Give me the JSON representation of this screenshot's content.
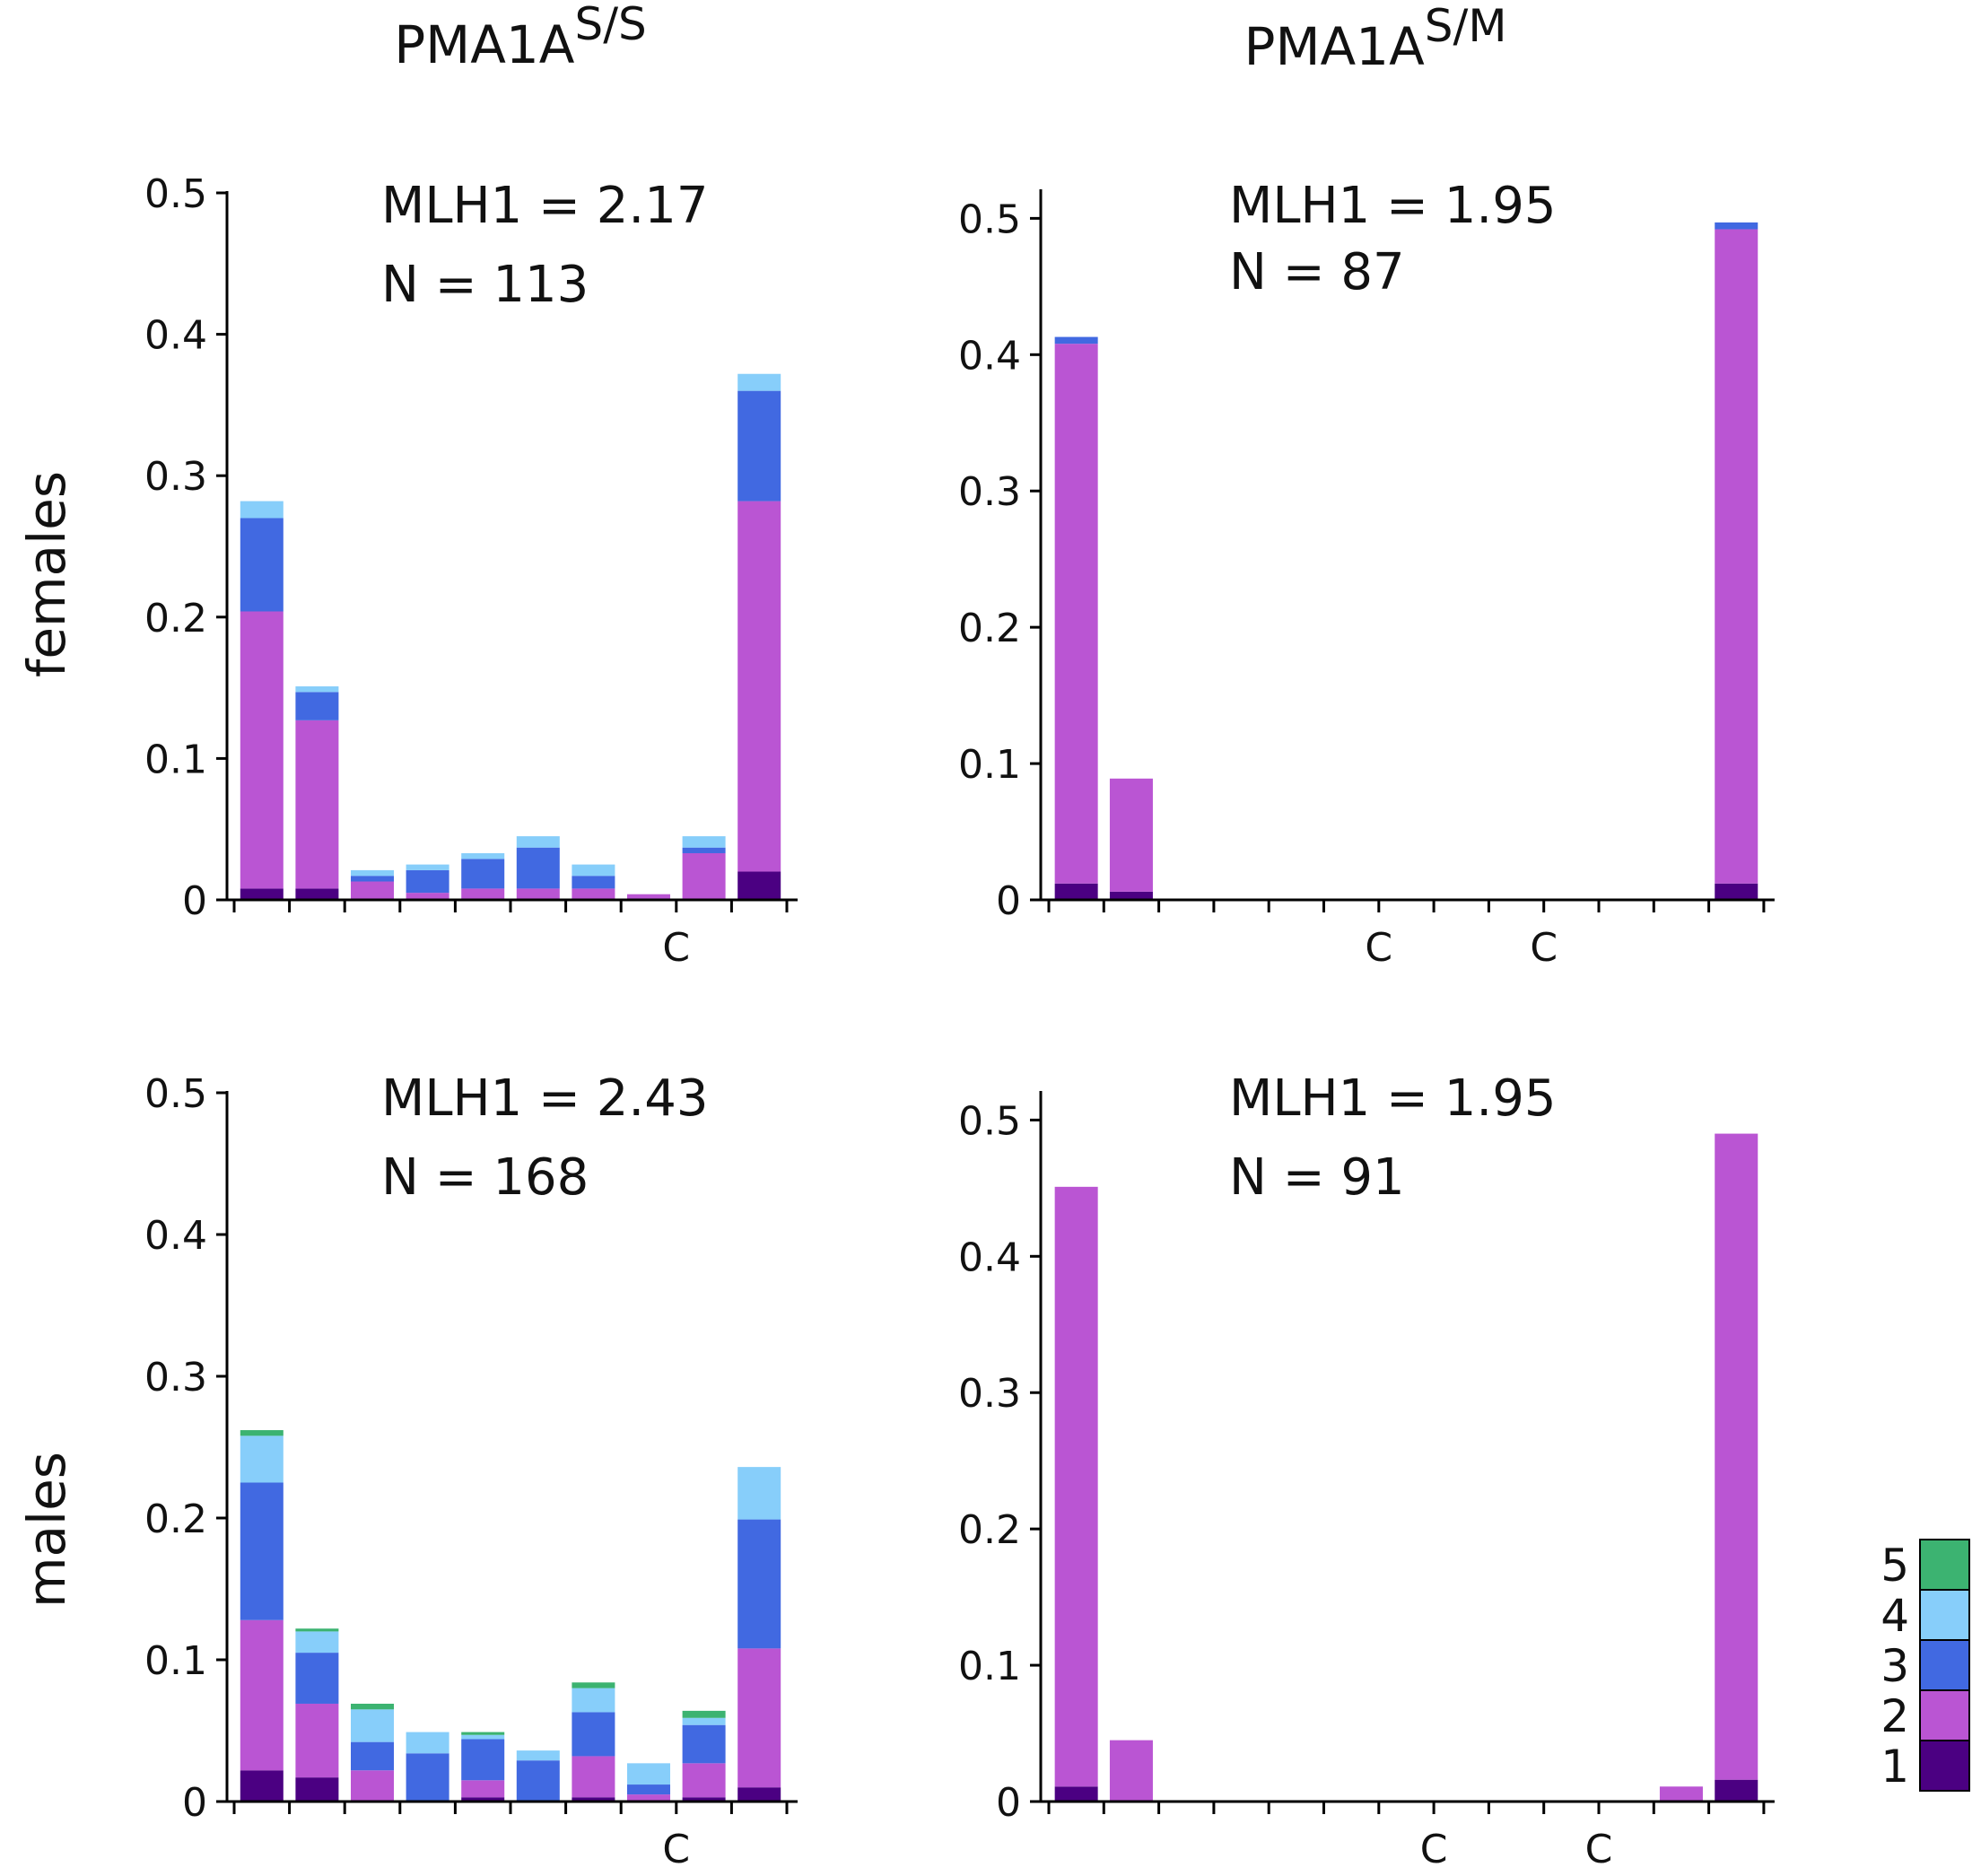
{
  "figure": {
    "col_titles": [
      {
        "base": "PMA1A",
        "sup": "S/S"
      },
      {
        "base": "PMA1A",
        "sup": "S/M"
      }
    ],
    "row_labels": [
      "females",
      "males"
    ]
  },
  "legend": {
    "entries": [
      {
        "label": "5",
        "color": "#3cb371"
      },
      {
        "label": "4",
        "color": "#87cefa"
      },
      {
        "label": "3",
        "color": "#4169e1"
      },
      {
        "label": "2",
        "color": "#ba55d3"
      },
      {
        "label": "1",
        "color": "#4b0082"
      }
    ]
  },
  "chart_data": [
    {
      "type": "bar",
      "stacked": true,
      "panel": "females, PMA1A S/S",
      "annotations": [
        "MLH1 = 2.17",
        "N = 113"
      ],
      "ylim": [
        0,
        0.5
      ],
      "yticks": [
        0,
        0.1,
        0.2,
        0.3,
        0.4,
        0.5
      ],
      "ytick_labels": [
        "0",
        "0.1",
        "0.2",
        "0.3",
        "0.4",
        "0.5"
      ],
      "n_bins": 10,
      "xtick_labels": [
        {
          "bin": 8,
          "label": "C"
        }
      ],
      "series": [
        {
          "name": "1",
          "values": [
            0.008,
            0.008,
            0,
            0,
            0,
            0,
            0,
            0,
            0,
            0.02
          ]
        },
        {
          "name": "2",
          "values": [
            0.196,
            0.119,
            0.013,
            0.005,
            0.008,
            0.008,
            0.008,
            0.004,
            0.033,
            0.262
          ]
        },
        {
          "name": "3",
          "values": [
            0.066,
            0.02,
            0.004,
            0.016,
            0.021,
            0.029,
            0.009,
            0,
            0.004,
            0.078
          ]
        },
        {
          "name": "4",
          "values": [
            0.012,
            0.004,
            0.004,
            0.004,
            0.004,
            0.008,
            0.008,
            0,
            0.008,
            0.012
          ]
        },
        {
          "name": "5",
          "values": [
            0,
            0,
            0,
            0,
            0,
            0,
            0,
            0,
            0,
            0
          ]
        }
      ]
    },
    {
      "type": "bar",
      "stacked": true,
      "panel": "females, PMA1A S/M",
      "annotations": [
        "MLH1 = 1.95",
        "N = 87"
      ],
      "ylim": [
        0,
        0.52
      ],
      "yticks": [
        0,
        0.1,
        0.2,
        0.3,
        0.4,
        0.5
      ],
      "ytick_labels": [
        "0",
        "0.1",
        "0.2",
        "0.3",
        "0.4",
        "0.5"
      ],
      "n_bins": 13,
      "xtick_labels": [
        {
          "bin": 6,
          "label": "C"
        },
        {
          "bin": 9,
          "label": "C"
        }
      ],
      "series": [
        {
          "name": "1",
          "values": [
            0.012,
            0.006,
            0,
            0,
            0,
            0,
            0,
            0,
            0,
            0,
            0,
            0,
            0.012
          ]
        },
        {
          "name": "2",
          "values": [
            0.396,
            0.083,
            0,
            0,
            0,
            0,
            0,
            0,
            0,
            0,
            0,
            0,
            0.48
          ]
        },
        {
          "name": "3",
          "values": [
            0.005,
            0,
            0,
            0,
            0,
            0,
            0,
            0,
            0,
            0,
            0,
            0,
            0.005
          ]
        },
        {
          "name": "4",
          "values": [
            0,
            0,
            0,
            0,
            0,
            0,
            0,
            0,
            0,
            0,
            0,
            0,
            0
          ]
        },
        {
          "name": "5",
          "values": [
            0,
            0,
            0,
            0,
            0,
            0,
            0,
            0,
            0,
            0,
            0,
            0,
            0
          ]
        }
      ]
    },
    {
      "type": "bar",
      "stacked": true,
      "panel": "males, PMA1A S/S",
      "annotations": [
        "MLH1 = 2.43",
        "N = 168"
      ],
      "ylim": [
        0,
        0.5
      ],
      "yticks": [
        0,
        0.1,
        0.2,
        0.3,
        0.4,
        0.5
      ],
      "ytick_labels": [
        "0",
        "0.1",
        "0.2",
        "0.3",
        "0.4",
        "0.5"
      ],
      "n_bins": 10,
      "xtick_labels": [
        {
          "bin": 8,
          "label": "C"
        }
      ],
      "series": [
        {
          "name": "1",
          "values": [
            0.022,
            0.017,
            0,
            0,
            0.003,
            0,
            0.003,
            0,
            0.003,
            0.01
          ]
        },
        {
          "name": "2",
          "values": [
            0.106,
            0.052,
            0.022,
            0,
            0.012,
            0,
            0.029,
            0.005,
            0.024,
            0.098
          ]
        },
        {
          "name": "3",
          "values": [
            0.097,
            0.036,
            0.02,
            0.034,
            0.029,
            0.029,
            0.031,
            0.007,
            0.027,
            0.091
          ]
        },
        {
          "name": "4",
          "values": [
            0.033,
            0.015,
            0.023,
            0.015,
            0.003,
            0.007,
            0.017,
            0.015,
            0.005,
            0.037
          ]
        },
        {
          "name": "5",
          "values": [
            0.004,
            0.002,
            0.004,
            0,
            0.002,
            0,
            0.004,
            0,
            0.005,
            0
          ]
        }
      ]
    },
    {
      "type": "bar",
      "stacked": true,
      "panel": "males, PMA1A S/M",
      "annotations": [
        "MLH1 = 1.95",
        "N = 91"
      ],
      "ylim": [
        0,
        0.52
      ],
      "yticks": [
        0,
        0.1,
        0.2,
        0.3,
        0.4,
        0.5
      ],
      "ytick_labels": [
        "0",
        "0.1",
        "0.2",
        "0.3",
        "0.4",
        "0.5"
      ],
      "n_bins": 13,
      "xtick_labels": [
        {
          "bin": 7,
          "label": "C"
        },
        {
          "bin": 10,
          "label": "C"
        }
      ],
      "series": [
        {
          "name": "1",
          "values": [
            0.011,
            0,
            0,
            0,
            0,
            0,
            0,
            0,
            0,
            0,
            0,
            0,
            0.016
          ]
        },
        {
          "name": "2",
          "values": [
            0.44,
            0.045,
            0,
            0,
            0,
            0,
            0,
            0,
            0,
            0,
            0,
            0.011,
            0.474
          ]
        },
        {
          "name": "3",
          "values": [
            0,
            0,
            0,
            0,
            0,
            0,
            0,
            0,
            0,
            0,
            0,
            0,
            0
          ]
        },
        {
          "name": "4",
          "values": [
            0,
            0,
            0,
            0,
            0,
            0,
            0,
            0,
            0,
            0,
            0,
            0,
            0
          ]
        },
        {
          "name": "5",
          "values": [
            0,
            0,
            0,
            0,
            0,
            0,
            0,
            0,
            0,
            0,
            0,
            0,
            0
          ]
        }
      ]
    }
  ]
}
